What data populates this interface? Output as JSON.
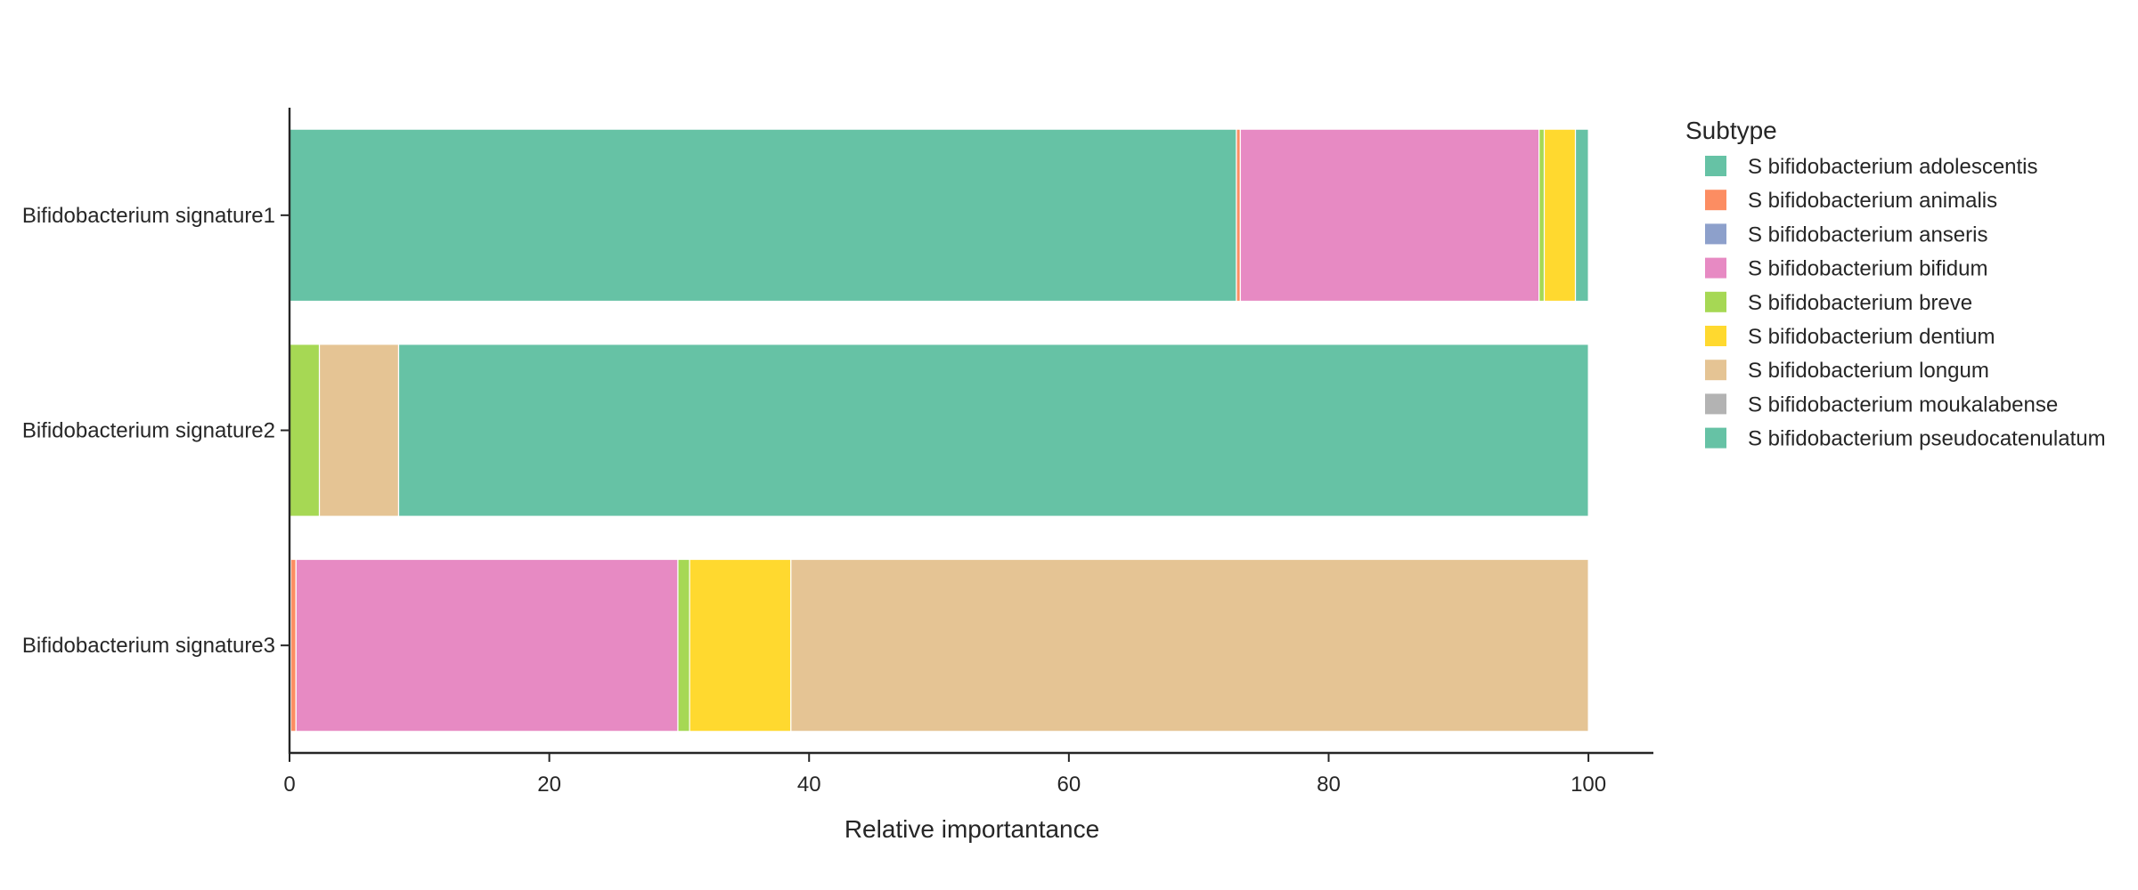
{
  "chart_data": {
    "type": "bar",
    "orientation": "horizontal",
    "stacked": true,
    "xlabel": "Relative importantance",
    "ylabel": "",
    "xlim": [
      0,
      105
    ],
    "xticks": [
      0,
      20,
      40,
      60,
      80,
      100
    ],
    "grid": false,
    "legend_position": "right",
    "categories": [
      "Bifidobacterium signature1",
      "Bifidobacterium signature2",
      "Bifidobacterium signature3"
    ],
    "legend": {
      "title": "Subtype",
      "entries": [
        {
          "label": "S  bifidobacterium adolescentis",
          "color": "#66c2a5"
        },
        {
          "label": "S  bifidobacterium animalis",
          "color": "#fc8d62"
        },
        {
          "label": "S  bifidobacterium anseris",
          "color": "#8da0cb"
        },
        {
          "label": "S  bifidobacterium bifidum",
          "color": "#e78ac3"
        },
        {
          "label": "S  bifidobacterium breve",
          "color": "#a6d854"
        },
        {
          "label": "S  bifidobacterium dentium",
          "color": "#ffd92f"
        },
        {
          "label": "S  bifidobacterium longum",
          "color": "#e5c494"
        },
        {
          "label": "S  bifidobacterium moukalabense",
          "color": "#b3b3b3"
        },
        {
          "label": "S  bifidobacterium pseudocatenulatum",
          "color": "#66c2a5"
        }
      ]
    },
    "series": [
      {
        "values": [
          72.9,
          0,
          0.1
        ]
      },
      {
        "values": [
          0.3,
          0,
          0.4
        ]
      },
      {
        "values": [
          0,
          0,
          0
        ]
      },
      {
        "values": [
          23.0,
          0,
          29.4
        ]
      },
      {
        "values": [
          0.4,
          2.3,
          0.9
        ]
      },
      {
        "values": [
          2.4,
          0,
          7.8
        ]
      },
      {
        "values": [
          0,
          6.1,
          61.4
        ]
      },
      {
        "values": [
          0,
          0,
          0
        ]
      },
      {
        "values": [
          1.0,
          91.6,
          0
        ]
      }
    ]
  }
}
